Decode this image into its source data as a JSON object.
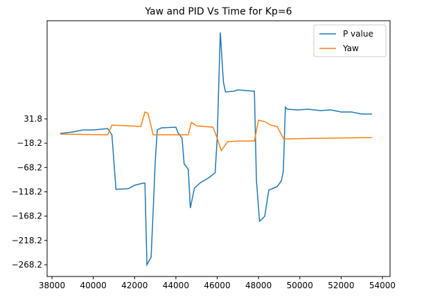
{
  "chart_data": {
    "type": "line",
    "title": "Yaw and PID Vs Time for Kp=6",
    "xlim": [
      37765,
      54369
    ],
    "xticks": [
      38000,
      40000,
      42000,
      44000,
      46000,
      48000,
      50000,
      52000,
      54000
    ],
    "ylim": [
      -292.4,
      233.7
    ],
    "yticks": [
      {
        "value": -268.2,
        "label": "−268.2"
      },
      {
        "value": -218.2,
        "label": "−218.2"
      },
      {
        "value": -168.2,
        "label": "−168.2"
      },
      {
        "value": -118.2,
        "label": "−118.2"
      },
      {
        "value": -68.2,
        "label": "−68.2"
      },
      {
        "value": -18.2,
        "label": "−18.2"
      },
      31.8
    ],
    "legend": "upper right",
    "series": [
      {
        "name": "P value",
        "color": "#1f77b4",
        "x": [
          38400,
          39000,
          39500,
          40000,
          40700,
          40900,
          41100,
          41700,
          42000,
          42400,
          42500,
          42600,
          42800,
          42900,
          43000,
          43100,
          43300,
          44000,
          44100,
          44300,
          44400,
          44600,
          44700,
          44900,
          45200,
          45600,
          45900,
          46000,
          46150,
          46300,
          46400,
          46800,
          47000,
          47800,
          47900,
          48050,
          48300,
          48500,
          48900,
          49100,
          49200,
          49300,
          49400,
          49900,
          50400,
          51000,
          51500,
          52000,
          52500,
          53000,
          53500
        ],
        "values": [
          2,
          4.8,
          9,
          9,
          11.9,
          -0.9,
          -113,
          -111.8,
          -104.7,
          -100.4,
          -100.4,
          -268.2,
          -252.6,
          -157.3,
          -54.9,
          9,
          13.3,
          14.7,
          3.4,
          -8,
          -60.6,
          -72,
          -151.6,
          -110.4,
          -99,
          -89,
          -79.1,
          -8,
          209.6,
          108.6,
          87.3,
          88.7,
          91.5,
          88.7,
          -93.3,
          -178.7,
          -168.7,
          -114.7,
          -107.6,
          -96.2,
          -76.3,
          56,
          51.7,
          50.3,
          51.7,
          48.9,
          50.3,
          46,
          46,
          41.8,
          41.8
        ]
      },
      {
        "name": "Yaw",
        "color": "#ff7f0e",
        "x": [
          38400,
          40700,
          40900,
          41700,
          42300,
          42500,
          42650,
          42900,
          44000,
          44600,
          44750,
          45000,
          45800,
          46000,
          46200,
          46500,
          47000,
          47800,
          48000,
          48300,
          48600,
          48900,
          49200,
          49300,
          51000,
          53500
        ],
        "values": [
          0.5,
          -0.9,
          19,
          17.6,
          16.2,
          46,
          43.2,
          -0.9,
          -0.9,
          -0.9,
          24.7,
          17.6,
          14.7,
          -8,
          -33.6,
          -15.1,
          -13.7,
          -13.7,
          29,
          26.2,
          19,
          16.2,
          -8,
          -9.4,
          -8,
          -6.6
        ]
      }
    ]
  }
}
